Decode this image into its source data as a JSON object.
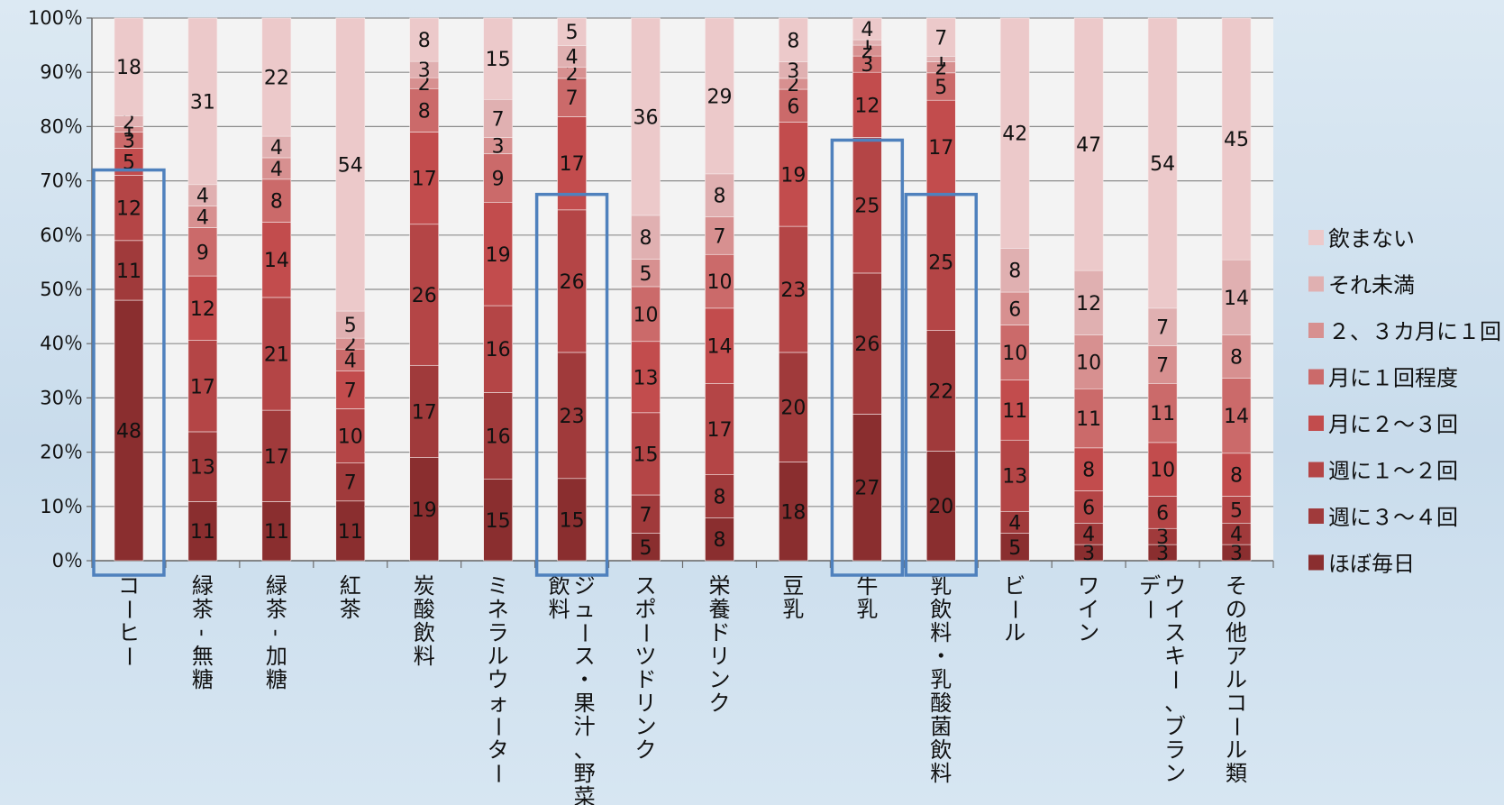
{
  "chart_data": {
    "type": "bar",
    "stacked": true,
    "percent": true,
    "grid": true,
    "legend_position": "right",
    "ylim": [
      0,
      100
    ],
    "y_ticks": [
      "0％",
      "10％",
      "20％",
      "30％",
      "40％",
      "50％",
      "60％",
      "70％",
      "80％",
      "90％",
      "100％"
    ],
    "categories": [
      "コーヒー",
      "緑茶-無糖",
      "緑茶-加糖",
      "紅茶",
      "炭酸飲料",
      "ミネラルウォーター",
      "ジュース・果汁、野菜飲料",
      "スポーツドリンク",
      "栄養ドリンク",
      "豆乳",
      "牛乳",
      "乳飲料・乳酸菌飲料",
      "ビール",
      "ワイン",
      "ウイスキー、ブランデー",
      "その他アルコール類"
    ],
    "category_lines": [
      [
        "コーヒー"
      ],
      [
        "緑茶-無糖"
      ],
      [
        "緑茶-加糖"
      ],
      [
        "紅茶"
      ],
      [
        "炭酸飲料"
      ],
      [
        "ミネラルウォーター"
      ],
      [
        "ジュース・果汁、野菜",
        "飲料"
      ],
      [
        "スポーツドリンク"
      ],
      [
        "栄養ドリンク"
      ],
      [
        "豆乳"
      ],
      [
        "牛乳"
      ],
      [
        "乳飲料・乳酸菌飲料"
      ],
      [
        "ビール"
      ],
      [
        "ワイン"
      ],
      [
        "ウイスキー、ブラン",
        "デー"
      ],
      [
        "その他アルコール類"
      ]
    ],
    "series": [
      {
        "name": "ほぼ毎日",
        "color": "#8a2e2f",
        "values": [
          48,
          11,
          11,
          11,
          19,
          15,
          15,
          5,
          8,
          18,
          27,
          20,
          5,
          3,
          3,
          3
        ]
      },
      {
        "name": "週に３～４回",
        "color": "#a03a3b",
        "values": [
          11,
          13,
          17,
          7,
          17,
          16,
          23,
          7,
          8,
          20,
          26,
          22,
          4,
          4,
          3,
          4
        ]
      },
      {
        "name": "週に１～２回",
        "color": "#b44546",
        "values": [
          12,
          17,
          21,
          10,
          26,
          16,
          26,
          15,
          17,
          23,
          25,
          25,
          13,
          6,
          6,
          5
        ]
      },
      {
        "name": "月に２～３回",
        "color": "#c24c4d",
        "values": [
          5,
          12,
          14,
          7,
          17,
          19,
          17,
          13,
          14,
          19,
          12,
          17,
          11,
          8,
          10,
          8
        ]
      },
      {
        "name": "月に１回程度",
        "color": "#cb6a6a",
        "values": [
          3,
          9,
          8,
          4,
          8,
          9,
          7,
          10,
          10,
          6,
          3,
          5,
          10,
          11,
          11,
          14
        ]
      },
      {
        "name": "２、３カ月に１回",
        "color": "#d79090",
        "values": [
          1,
          4,
          4,
          2,
          2,
          3,
          2,
          5,
          7,
          2,
          2,
          2,
          6,
          10,
          7,
          8
        ]
      },
      {
        "name": "それ未満",
        "color": "#e0b0b1",
        "values": [
          2,
          4,
          4,
          5,
          3,
          7,
          4,
          8,
          8,
          3,
          1,
          1,
          8,
          12,
          7,
          14
        ]
      },
      {
        "name": "飲まない",
        "color": "#ecc9ca",
        "values": [
          18,
          31,
          22,
          54,
          8,
          15,
          5,
          36,
          29,
          8,
          4,
          7,
          42,
          47,
          54,
          45
        ]
      }
    ],
    "highlighted_categories": [
      "コーヒー",
      "ジュース・果汁、野菜飲料",
      "牛乳",
      "乳飲料・乳酸菌飲料"
    ],
    "highlight_color": "#4f81bd"
  }
}
